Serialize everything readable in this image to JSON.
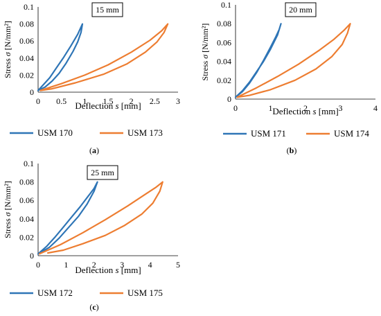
{
  "colors": {
    "series_a": "#2E75B6",
    "series_b": "#ED7D31",
    "axis": "#000000"
  },
  "chart_data": [
    {
      "type": "line",
      "panel_label": "(a)",
      "title": "15 mm",
      "xlabel": "Deflection s [mm]",
      "ylabel": "Stress σ [N/mm²]",
      "xlim": [
        0,
        3
      ],
      "ylim": [
        0,
        0.1
      ],
      "xticks": [
        "0",
        "0.5",
        "1",
        "1.5",
        "2",
        "2.5",
        "3"
      ],
      "yticks": [
        "0",
        "0.02",
        "0.04",
        "0.06",
        "0.08",
        "0.1"
      ],
      "grid": false,
      "legend_position": "bottom",
      "series": [
        {
          "name": "USM 170",
          "loading": [
            [
              0.0,
              0.002
            ],
            [
              0.15,
              0.006
            ],
            [
              0.3,
              0.013
            ],
            [
              0.45,
              0.022
            ],
            [
              0.6,
              0.034
            ],
            [
              0.75,
              0.048
            ],
            [
              0.85,
              0.059
            ],
            [
              0.92,
              0.07
            ],
            [
              0.95,
              0.08
            ]
          ],
          "unloading": [
            [
              0.95,
              0.08
            ],
            [
              0.85,
              0.068
            ],
            [
              0.7,
              0.054
            ],
            [
              0.55,
              0.041
            ],
            [
              0.4,
              0.029
            ],
            [
              0.25,
              0.017
            ],
            [
              0.1,
              0.008
            ],
            [
              0.0,
              0.002
            ]
          ]
        },
        {
          "name": "USM 173",
          "loading": [
            [
              0.05,
              0.002
            ],
            [
              0.5,
              0.01
            ],
            [
              1.0,
              0.02
            ],
            [
              1.5,
              0.032
            ],
            [
              2.0,
              0.047
            ],
            [
              2.4,
              0.061
            ],
            [
              2.65,
              0.072
            ],
            [
              2.78,
              0.08
            ]
          ],
          "unloading": [
            [
              2.78,
              0.08
            ],
            [
              2.7,
              0.07
            ],
            [
              2.55,
              0.059
            ],
            [
              2.3,
              0.047
            ],
            [
              1.9,
              0.033
            ],
            [
              1.4,
              0.021
            ],
            [
              0.8,
              0.011
            ],
            [
              0.3,
              0.004
            ],
            [
              0.05,
              0.002
            ]
          ]
        }
      ]
    },
    {
      "type": "line",
      "panel_label": "(b)",
      "title": "20 mm",
      "xlabel": "Deflection s [mm]",
      "ylabel": "Stress σ [N/mm²]",
      "xlim": [
        0,
        4
      ],
      "ylim": [
        0,
        0.1
      ],
      "xticks": [
        "0",
        "1",
        "2",
        "3",
        "4"
      ],
      "yticks": [
        "0",
        "0.02",
        "0.04",
        "0.06",
        "0.08",
        "0.1"
      ],
      "grid": false,
      "legend_position": "bottom",
      "series": [
        {
          "name": "USM 171",
          "loading": [
            [
              0.0,
              0.002
            ],
            [
              0.2,
              0.008
            ],
            [
              0.4,
              0.017
            ],
            [
              0.6,
              0.028
            ],
            [
              0.8,
              0.041
            ],
            [
              1.0,
              0.055
            ],
            [
              1.15,
              0.066
            ],
            [
              1.25,
              0.074
            ],
            [
              1.3,
              0.08
            ]
          ],
          "unloading": [
            [
              1.3,
              0.08
            ],
            [
              1.2,
              0.068
            ],
            [
              1.0,
              0.053
            ],
            [
              0.8,
              0.04
            ],
            [
              0.6,
              0.029
            ],
            [
              0.4,
              0.018
            ],
            [
              0.2,
              0.009
            ],
            [
              0.0,
              0.002
            ]
          ]
        },
        {
          "name": "USM 174",
          "loading": [
            [
              0.05,
              0.002
            ],
            [
              0.6,
              0.012
            ],
            [
              1.2,
              0.024
            ],
            [
              1.8,
              0.037
            ],
            [
              2.4,
              0.052
            ],
            [
              2.8,
              0.063
            ],
            [
              3.1,
              0.073
            ],
            [
              3.28,
              0.08
            ]
          ],
          "unloading": [
            [
              3.28,
              0.08
            ],
            [
              3.2,
              0.07
            ],
            [
              3.05,
              0.058
            ],
            [
              2.75,
              0.045
            ],
            [
              2.3,
              0.032
            ],
            [
              1.7,
              0.02
            ],
            [
              1.0,
              0.01
            ],
            [
              0.4,
              0.004
            ],
            [
              0.05,
              0.002
            ]
          ]
        }
      ]
    },
    {
      "type": "line",
      "panel_label": "(c)",
      "title": "25 mm",
      "xlabel": "Deflection s [mm]",
      "ylabel": "Stress σ [N/mm²]",
      "xlim": [
        0,
        5
      ],
      "ylim": [
        0,
        0.1
      ],
      "xticks": [
        "0",
        "1",
        "2",
        "3",
        "4",
        "5"
      ],
      "yticks": [
        "0",
        "0.02",
        "0.04",
        "0.06",
        "0.08",
        "0.1"
      ],
      "grid": false,
      "legend_position": "bottom",
      "series": [
        {
          "name": "USM 172",
          "loading": [
            [
              0.0,
              0.002
            ],
            [
              0.3,
              0.01
            ],
            [
              0.6,
              0.02
            ],
            [
              0.9,
              0.031
            ],
            [
              1.2,
              0.042
            ],
            [
              1.5,
              0.053
            ],
            [
              1.8,
              0.065
            ],
            [
              2.0,
              0.073
            ],
            [
              2.12,
              0.08
            ]
          ],
          "unloading": [
            [
              2.12,
              0.08
            ],
            [
              2.0,
              0.07
            ],
            [
              1.75,
              0.056
            ],
            [
              1.45,
              0.043
            ],
            [
              1.1,
              0.031
            ],
            [
              0.75,
              0.019
            ],
            [
              0.4,
              0.009
            ],
            [
              0.0,
              0.002
            ]
          ]
        },
        {
          "name": "USM 175",
          "loading": [
            [
              0.05,
              0.002
            ],
            [
              0.8,
              0.012
            ],
            [
              1.6,
              0.025
            ],
            [
              2.4,
              0.039
            ],
            [
              3.2,
              0.054
            ],
            [
              3.8,
              0.066
            ],
            [
              4.2,
              0.074
            ],
            [
              4.45,
              0.08
            ]
          ],
          "unloading": [
            [
              4.45,
              0.08
            ],
            [
              4.35,
              0.07
            ],
            [
              4.1,
              0.057
            ],
            [
              3.7,
              0.045
            ],
            [
              3.1,
              0.033
            ],
            [
              2.4,
              0.022
            ],
            [
              1.6,
              0.013
            ],
            [
              0.9,
              0.006
            ],
            [
              0.35,
              0.003
            ]
          ]
        }
      ]
    }
  ]
}
